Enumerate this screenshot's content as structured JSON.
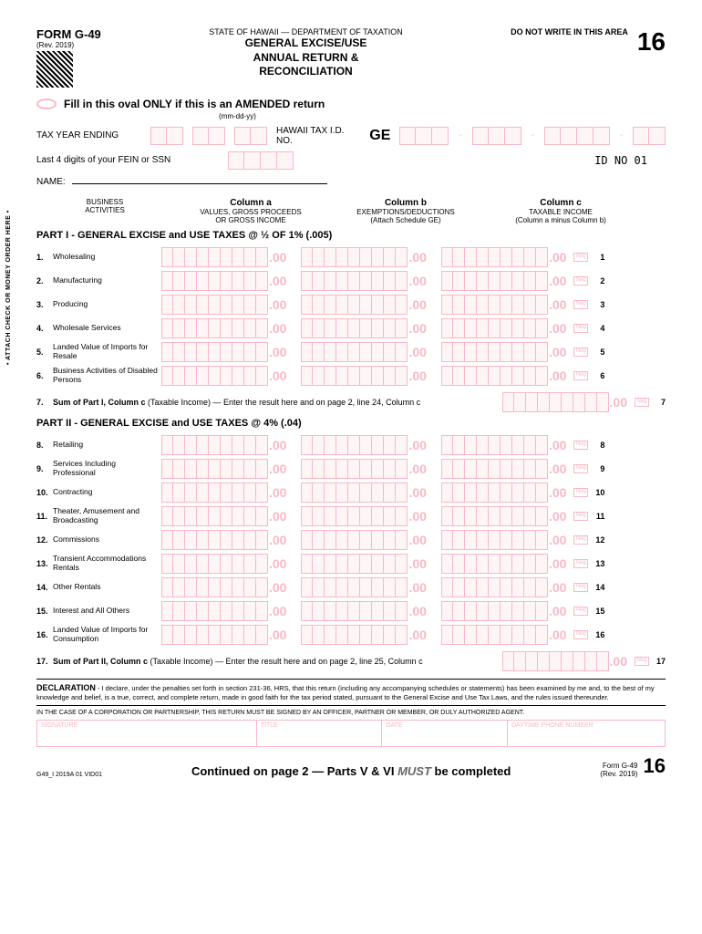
{
  "header": {
    "form_id": "FORM G-49",
    "rev": "(Rev. 2019)",
    "dept": "STATE OF HAWAII — DEPARTMENT OF TAXATION",
    "no_write": "DO NOT WRITE IN THIS AREA",
    "year": "16",
    "title_l1": "GENERAL EXCISE/USE",
    "title_l2": "ANNUAL RETURN &",
    "title_l3": "RECONCILIATION"
  },
  "amended": {
    "text": "Fill in this oval ONLY if this is an AMENDED return",
    "date_hint": "(mm-dd-yy)",
    "tax_year": "TAX YEAR ENDING",
    "hi_tax": "HAWAII TAX I.D. NO.",
    "ge": "GE",
    "fein": "Last 4 digits of your FEIN or SSN",
    "id_no": "ID NO 01",
    "name": "NAME:"
  },
  "cols": {
    "biz": "BUSINESS\nACTIVITIES",
    "a_h": "Column a",
    "a_s": "VALUES, GROSS PROCEEDS\nOR GROSS INCOME",
    "b_h": "Column b",
    "b_s": "EXEMPTIONS/DEDUCTIONS\n(Attach Schedule GE)",
    "c_h": "Column c",
    "c_s": "TAXABLE INCOME\n(Column a minus Column b)"
  },
  "part1": {
    "title": "PART I - GENERAL EXCISE and USE TAXES @ ½ OF 1% (.005)",
    "lines": [
      {
        "n": "1.",
        "label": "Wholesaling",
        "r": "1"
      },
      {
        "n": "2.",
        "label": "Manufacturing",
        "r": "2"
      },
      {
        "n": "3.",
        "label": "Producing",
        "r": "3"
      },
      {
        "n": "4.",
        "label": "Wholesale Services",
        "r": "4"
      },
      {
        "n": "5.",
        "label": "Landed Value of Imports for Resale",
        "r": "5"
      },
      {
        "n": "6.",
        "label": "Business Activities of Disabled Persons",
        "r": "6"
      }
    ],
    "sum_n": "7.",
    "sum": "Sum of Part I, Column c (Taxable Income)  —  Enter the result here and on page 2, line 24, Column c",
    "sum_r": "7"
  },
  "part2": {
    "title": "PART II - GENERAL EXCISE and USE TAXES @ 4% (.04)",
    "lines": [
      {
        "n": "8.",
        "label": "Retailing",
        "r": "8"
      },
      {
        "n": "9.",
        "label": "Services Including Professional",
        "r": "9"
      },
      {
        "n": "10.",
        "label": "Contracting",
        "r": "10"
      },
      {
        "n": "11.",
        "label": "Theater, Amusement and Broadcasting",
        "r": "11"
      },
      {
        "n": "12.",
        "label": "Commissions",
        "r": "12"
      },
      {
        "n": "13.",
        "label": "Transient Accommodations Rentals",
        "r": "13"
      },
      {
        "n": "14.",
        "label": "Other Rentals",
        "r": "14"
      },
      {
        "n": "15.",
        "label": "Interest and All Others",
        "r": "15"
      },
      {
        "n": "16.",
        "label": "Landed Value of Imports for Consumption",
        "r": "16"
      }
    ],
    "sum_n": "17.",
    "sum": "Sum of Part II, Column c (Taxable Income) — Enter the result here and on page 2,  line 25, Column c",
    "sum_r": "17"
  },
  "side": "• ATTACH CHECK OR MONEY ORDER HERE •",
  "decl": {
    "h": "DECLARATION",
    "t": " - I declare, under the penalties set forth in section 231-36, HRS, that this return (including any accompanying schedules or statements) has been examined by me and, to the best of my knowledge and belief, is a true, correct, and complete return, made in good faith for the tax period stated, pursuant to the General Excise and Use Tax Laws, and the rules issued thereunder.",
    "case": "IN THE CASE OF A CORPORATION OR PARTNERSHIP, THIS RETURN MUST BE SIGNED BY AN OFFICER, PARTNER OR MEMBER, OR DULY AUTHORIZED AGENT.",
    "sig": "SIGNATURE",
    "title": "TITLE",
    "date": "DATE",
    "phone": "DAYTIME PHONE NUMBER"
  },
  "footer": {
    "code": "G49_I 2019A 01 VID01",
    "cont": "Continued on page 2 — Parts V & VI ",
    "must": "MUST",
    "cont2": " be completed",
    "form": "Form G-49",
    "rev": "(Rev. 2019)",
    "yr": "16"
  },
  "style": {
    "pink": "#f9b8c4",
    "pink_bg": "#fef5f7",
    "amt_box_count": 9
  }
}
